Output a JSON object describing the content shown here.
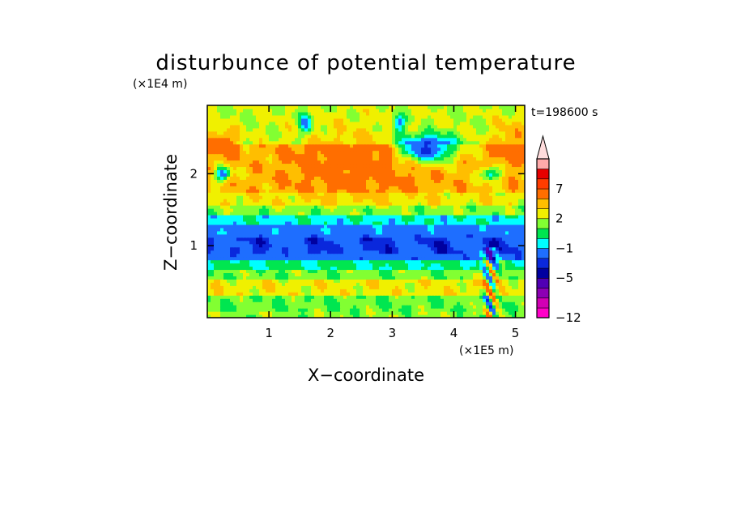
{
  "chart_data": {
    "type": "heatmap",
    "title": "disturbunce of potential temperature",
    "xlabel": "X−coordinate",
    "ylabel": "Z−coordinate",
    "x_unit": "(×1E5 m)",
    "y_unit": "(×1E4 m)",
    "time_label": "t=198600 s",
    "xlim": [
      0,
      5.15
    ],
    "ylim": [
      0,
      2.95
    ],
    "x_ticks": [
      {
        "value": 1,
        "label": "1"
      },
      {
        "value": 2,
        "label": "2"
      },
      {
        "value": 3,
        "label": "3"
      },
      {
        "value": 4,
        "label": "4"
      },
      {
        "value": 5,
        "label": "5"
      }
    ],
    "y_ticks": [
      {
        "value": 1,
        "label": "1"
      },
      {
        "value": 2,
        "label": "2"
      }
    ],
    "colorbar": {
      "levels": [
        {
          "upper": -12,
          "color": "#ff00c8"
        },
        {
          "upper": -10,
          "color": "#d200b4"
        },
        {
          "upper": -8,
          "color": "#8c00b4"
        },
        {
          "upper": -6,
          "color": "#5000b4"
        },
        {
          "upper": -5,
          "color": "#0000a0"
        },
        {
          "upper": -4,
          "color": "#0a28dc"
        },
        {
          "upper": -2,
          "color": "#1e6eff"
        },
        {
          "upper": -1,
          "color": "#00ffff"
        },
        {
          "upper": 0,
          "color": "#00e650"
        },
        {
          "upper": 1,
          "color": "#82ff32"
        },
        {
          "upper": 2,
          "color": "#f0f000"
        },
        {
          "upper": 3,
          "color": "#ffbe00"
        },
        {
          "upper": 5,
          "color": "#ff6e00"
        },
        {
          "upper": 7,
          "color": "#ff3c00"
        },
        {
          "upper": 9,
          "color": "#e60000"
        },
        {
          "upper": 12,
          "color": "#ffaaaa"
        },
        {
          "upper": 14,
          "color": "#ffdcdc"
        }
      ],
      "tick_labels": [
        {
          "value": 7,
          "label": "7"
        },
        {
          "value": 2,
          "label": "2"
        },
        {
          "value": -1,
          "label": "−1"
        },
        {
          "value": -5,
          "label": "−5"
        },
        {
          "value": -12,
          "label": "−12"
        }
      ]
    }
  }
}
